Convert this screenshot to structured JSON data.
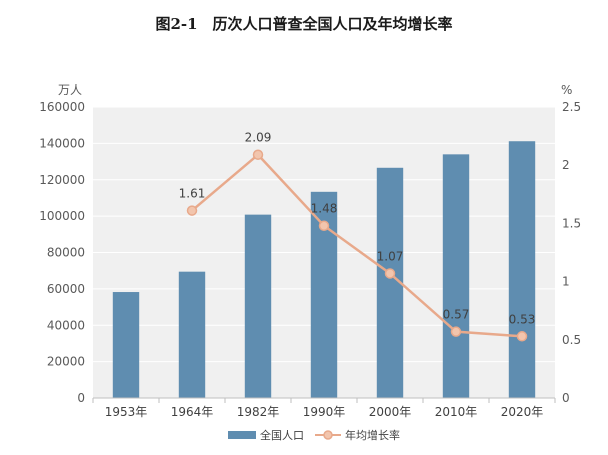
{
  "colors": {
    "bar": "#5f8db0",
    "line": "#e8a98b",
    "marker_fill": "#f2c5ad",
    "plot_bg": "#f0f0f0",
    "grid": "#ffffff"
  },
  "chart_data": {
    "type": "bar",
    "title": "图2-1　历次人口普查全国人口及年均增长率",
    "left_unit": "万人",
    "right_unit": "%",
    "categories": [
      "1953年",
      "1964年",
      "1982年",
      "1990年",
      "2000年",
      "2010年",
      "2020年"
    ],
    "ylim": [
      0,
      160000
    ],
    "yticks": [
      0,
      20000,
      40000,
      60000,
      80000,
      100000,
      120000,
      140000,
      160000
    ],
    "y2lim": [
      0,
      2.5
    ],
    "y2ticks": [
      "0",
      "0.5",
      "1",
      "1.5",
      "2",
      "2.5"
    ],
    "grid": true,
    "legend_position": "bottom",
    "series": [
      {
        "name": "全国人口",
        "kind": "bar",
        "axis": "left",
        "values": [
          58260,
          69458,
          100818,
          113368,
          126583,
          133972,
          141178
        ]
      },
      {
        "name": "年均增长率",
        "kind": "line",
        "axis": "right",
        "values": [
          null,
          1.61,
          2.09,
          1.48,
          1.07,
          0.57,
          0.53
        ],
        "labels": [
          "",
          "1.61",
          "2.09",
          "1.48",
          "1.07",
          "0.57",
          "0.53"
        ]
      }
    ]
  }
}
